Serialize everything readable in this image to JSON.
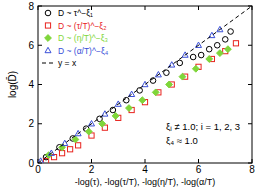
{
  "chart_data": {
    "type": "scatter",
    "x_label": "-log(τ), -log(τ/T), -log(η/T), -log(α/T)",
    "y_label": "log(D̄)",
    "xlim": [
      0,
      8
    ],
    "ylim": [
      0,
      8
    ],
    "xticks": [
      0,
      2,
      4,
      6,
      8
    ],
    "yticks": [
      0,
      2,
      4,
      6,
      8
    ],
    "legend": "upper-left",
    "annotations": [
      "ξᵢ ≠ 1.0; i = 1, 2, 3",
      "ξ₄ ≈ 1.0"
    ],
    "series": [
      {
        "name": "D ~ τ^−ξ₁",
        "color": "#000000",
        "marker": "circle",
        "x": [
          0.3,
          0.8,
          1.3,
          1.8,
          2.3,
          2.8,
          3.3,
          3.8,
          4.3,
          4.8,
          5.3,
          5.8,
          6.1,
          6.4,
          6.7,
          7.0,
          7.2
        ],
        "values": [
          0.3,
          0.8,
          1.25,
          1.75,
          2.25,
          2.7,
          3.2,
          3.7,
          4.2,
          4.6,
          5.1,
          5.4,
          5.5,
          5.8,
          6.0,
          6.3,
          6.7
        ]
      },
      {
        "name": "D ~ (τ/T)^−ξ₂",
        "color": "#e8231e",
        "marker": "square",
        "x": [
          0.3,
          0.6,
          0.9,
          1.2,
          1.5,
          2.0,
          2.5,
          3.0,
          3.5,
          4.0,
          4.5,
          5.0,
          5.5,
          6.0,
          6.5,
          7.0,
          7.4
        ],
        "values": [
          0.1,
          0.3,
          0.5,
          0.7,
          0.9,
          1.4,
          1.8,
          2.3,
          2.7,
          3.1,
          3.6,
          4.0,
          4.4,
          4.9,
          5.3,
          5.7,
          6.1
        ]
      },
      {
        "name": "D ~ (η/T)^−ξ₃",
        "color": "#7fd63a",
        "marker": "diamond",
        "x": [
          0.4,
          0.9,
          1.4,
          1.9,
          2.4,
          2.9,
          3.4,
          3.9,
          4.4,
          4.9,
          5.4,
          5.9,
          6.4,
          6.8,
          7.1
        ],
        "values": [
          0.4,
          0.8,
          1.2,
          1.6,
          2.0,
          2.4,
          2.8,
          3.2,
          3.6,
          4.0,
          4.4,
          4.8,
          5.3,
          5.6,
          5.8
        ]
      },
      {
        "name": "D ~ (α/T)^−ξ₄",
        "color": "#3a4fd8",
        "marker": "triangle",
        "x": [
          0.1,
          0.5,
          1.0,
          1.5,
          2.0,
          2.5,
          3.0,
          3.5,
          4.0,
          4.5,
          5.0,
          5.5,
          6.0,
          6.5,
          6.8
        ],
        "values": [
          0.1,
          0.5,
          1.0,
          1.5,
          2.0,
          2.5,
          3.0,
          3.5,
          4.0,
          4.5,
          5.0,
          5.5,
          6.0,
          6.5,
          6.8
        ]
      },
      {
        "name": "y = x",
        "color": "#000000",
        "type": "line",
        "line_style": "dashed",
        "x": [
          0,
          8
        ],
        "values": [
          0,
          8
        ]
      }
    ]
  }
}
